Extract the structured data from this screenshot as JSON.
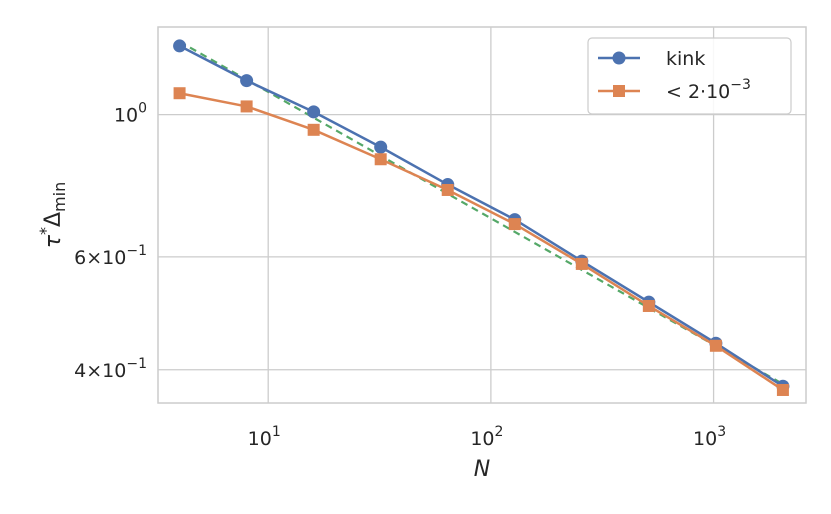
{
  "chart_data": {
    "type": "line",
    "xscale": "log",
    "yscale": "log",
    "xlim": [
      3.2,
      2600
    ],
    "ylim": [
      0.355,
      1.37
    ],
    "grid": true,
    "xlabel": "N",
    "ylabel_main": "τ",
    "ylabel_sup": "*",
    "ylabel_delta": "Δ",
    "ylabel_sub": "min",
    "xticks": [
      {
        "value": 10,
        "base": "10",
        "exp": "1"
      },
      {
        "value": 100,
        "base": "10",
        "exp": "2"
      },
      {
        "value": 1000,
        "base": "10",
        "exp": "3"
      }
    ],
    "yticks": [
      {
        "value": 1.0,
        "base": "10",
        "exp": "0",
        "prefix": ""
      },
      {
        "value": 0.6,
        "base": "10",
        "exp": "−1",
        "prefix": "6×"
      },
      {
        "value": 0.4,
        "base": "10",
        "exp": "−1",
        "prefix": "4×"
      }
    ],
    "x": [
      4,
      8,
      16,
      32,
      64,
      128,
      256,
      512,
      1024,
      2048
    ],
    "series": [
      {
        "name": "kink",
        "color": "#4c72b0",
        "marker": "circle",
        "values": [
          1.28,
          1.13,
          1.01,
          0.89,
          0.778,
          0.686,
          0.591,
          0.51,
          0.44,
          0.377
        ]
      },
      {
        "name_prefix": "< 2·10",
        "name_exp": "−3",
        "color": "#dd8452",
        "marker": "square",
        "values": [
          1.08,
          1.03,
          0.947,
          0.852,
          0.763,
          0.675,
          0.585,
          0.503,
          0.436,
          0.372
        ]
      }
    ],
    "fit_line": {
      "color": "#55a868",
      "style": "dashed",
      "x": [
        4,
        2048
      ],
      "values": [
        1.3,
        0.38
      ]
    },
    "legend": "upper-right"
  }
}
